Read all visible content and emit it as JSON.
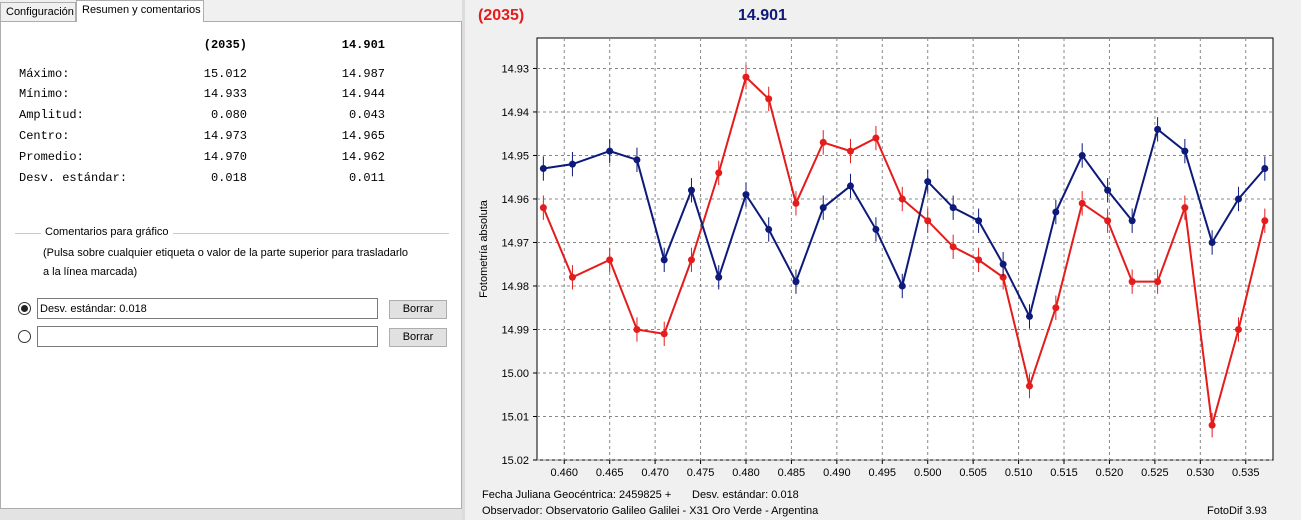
{
  "tabs": [
    {
      "label": "Configuración"
    },
    {
      "label": "Resumen y comentarios"
    }
  ],
  "summary": {
    "headers": [
      "(2035)",
      "14.901"
    ],
    "rows": [
      {
        "label": "Máximo:",
        "v1": "15.012",
        "v2": "14.987"
      },
      {
        "label": "Mínimo:",
        "v1": "14.933",
        "v2": "14.944"
      },
      {
        "label": "Amplitud:",
        "v1": "0.080",
        "v2": "0.043"
      },
      {
        "label": "Centro:",
        "v1": "14.973",
        "v2": "14.965"
      },
      {
        "label": "Promedio:",
        "v1": "14.970",
        "v2": "14.962"
      },
      {
        "label": "Desv. estándar:",
        "v1": "0.018",
        "v2": "0.011"
      }
    ]
  },
  "comments": {
    "title": "Comentarios para gráfico",
    "help_line1": "(Pulsa sobre cualquier etiqueta o valor de la parte superior para trasladarlo",
    "help_line2": "a la línea marcada)",
    "fields": [
      {
        "value": "Desv. estándar: 0.018",
        "selected": true,
        "button": "Borrar"
      },
      {
        "value": "",
        "selected": false,
        "button": "Borrar"
      }
    ]
  },
  "chart_title": {
    "left": "(2035)",
    "right": "14.901",
    "left_color": "#e41c1c",
    "right_color": "#0d1a7a"
  },
  "chart_data": {
    "type": "line",
    "ylabel": "Fotometría absoluta",
    "xlim": [
      0.457,
      0.538
    ],
    "ylim": [
      15.02,
      14.923
    ],
    "inverted_y": true,
    "grid": true,
    "x_ticks": [
      "0.460",
      "0.465",
      "0.470",
      "0.475",
      "0.480",
      "0.485",
      "0.490",
      "0.495",
      "0.500",
      "0.505",
      "0.510",
      "0.515",
      "0.520",
      "0.525",
      "0.530",
      "0.535"
    ],
    "y_ticks": [
      "14.93",
      "14.94",
      "14.95",
      "14.96",
      "14.97",
      "14.98",
      "14.99",
      "15.00",
      "15.01",
      "15.02"
    ],
    "x": [
      0.4577,
      0.4609,
      0.465,
      0.468,
      0.471,
      0.474,
      0.477,
      0.48,
      0.4825,
      0.4855,
      0.4885,
      0.4915,
      0.4943,
      0.4972,
      0.5,
      0.5028,
      0.5056,
      0.5083,
      0.5112,
      0.5141,
      0.517,
      0.5198,
      0.5225,
      0.5253,
      0.5283,
      0.5313,
      0.5342,
      0.5371
    ],
    "series": [
      {
        "color": "#e41c1c",
        "values": [
          14.962,
          14.978,
          14.974,
          14.99,
          14.991,
          14.974,
          14.954,
          14.932,
          14.937,
          14.961,
          14.947,
          14.949,
          14.946,
          14.96,
          14.965,
          14.971,
          14.974,
          14.978,
          15.003,
          14.985,
          14.961,
          14.965,
          14.979,
          14.979,
          14.962,
          15.012,
          14.99,
          14.965
        ]
      },
      {
        "color": "#0d1a7a",
        "values": [
          14.953,
          14.952,
          14.949,
          14.951,
          14.974,
          14.958,
          14.978,
          14.959,
          14.967,
          14.979,
          14.962,
          14.957,
          14.967,
          14.98,
          14.956,
          14.962,
          14.965,
          14.975,
          14.987,
          14.963,
          14.95,
          14.958,
          14.965,
          14.944,
          14.949,
          14.97,
          14.96,
          14.953
        ]
      }
    ],
    "error_bar": 0.0028
  },
  "footer": {
    "line1_left": "Fecha Juliana Geocéntrica: 2459825 +",
    "line1_right": "Desv. estándar: 0.018",
    "line2": "Observador: Observatorio Galileo Galilei - X31 Oro Verde - Argentina",
    "app": "FotoDif 3.93"
  }
}
